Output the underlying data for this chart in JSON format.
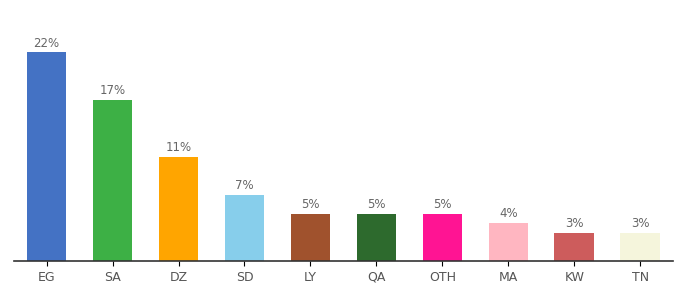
{
  "categories": [
    "EG",
    "SA",
    "DZ",
    "SD",
    "LY",
    "QA",
    "OTH",
    "MA",
    "KW",
    "TN"
  ],
  "values": [
    22,
    17,
    11,
    7,
    5,
    5,
    5,
    4,
    3,
    3
  ],
  "bar_colors": [
    "#4472C4",
    "#3DB045",
    "#FFA500",
    "#87CEEB",
    "#A0522D",
    "#2D6A2D",
    "#FF1493",
    "#FFB6C1",
    "#CD5C5C",
    "#F5F5DC"
  ],
  "ylim": [
    0,
    25
  ],
  "background_color": "#ffffff",
  "label_fontsize": 8.5,
  "tick_fontsize": 9
}
